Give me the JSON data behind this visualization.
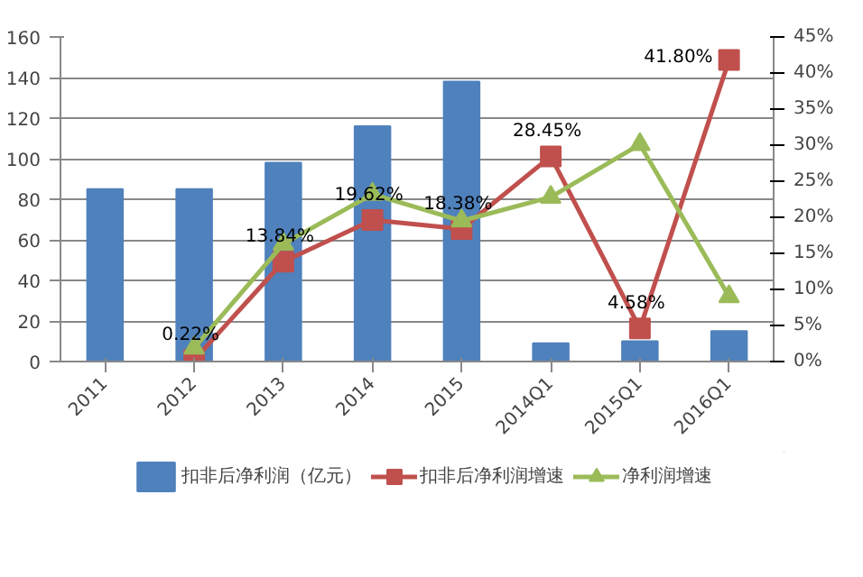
{
  "chart_data": {
    "type": "bar",
    "categories": [
      "2011",
      "2012",
      "2013",
      "2014",
      "2015",
      "2014Q1",
      "2015Q1",
      "2016Q1"
    ],
    "series": [
      {
        "name": "扣非后净利润（亿元）",
        "color": "#4f81bd",
        "values": [
          85,
          85,
          98,
          116,
          138,
          9,
          10,
          15
        ]
      },
      {
        "name": "扣非后净利润增速",
        "type": "line",
        "axis": "y2",
        "color": "#c0504d",
        "marker": "square",
        "values": [
          null,
          0.22,
          13.84,
          19.62,
          18.38,
          28.45,
          4.58,
          41.8
        ],
        "value_labels": [
          null,
          "0.22%",
          "13.84%",
          "19.62%",
          "18.38%",
          "28.45%",
          "4.58%",
          "41.80%"
        ]
      },
      {
        "name": "净利润增速",
        "type": "line",
        "axis": "y2",
        "color": "#9bbb59",
        "marker": "triangle",
        "values": [
          null,
          1.9,
          16.3,
          23.2,
          19.5,
          22.8,
          30.1,
          9.0
        ]
      }
    ],
    "ylim": [
      0,
      160
    ],
    "yticks": [
      0,
      20,
      40,
      60,
      80,
      100,
      120,
      140,
      160
    ],
    "y2lim": [
      0,
      45
    ],
    "y2ticks": [
      {
        "value": 0,
        "label": "0%"
      },
      {
        "value": 5,
        "label": "5%"
      },
      {
        "value": 10,
        "label": "10%"
      },
      {
        "value": 15,
        "label": "15%"
      },
      {
        "value": 20,
        "label": "20%"
      },
      {
        "value": 25,
        "label": "25%"
      },
      {
        "value": 30,
        "label": "30%"
      },
      {
        "value": 35,
        "label": "35%"
      },
      {
        "value": 40,
        "label": "40%"
      },
      {
        "value": 45,
        "label": "45%"
      }
    ],
    "grid": "y",
    "legend": "bottom"
  }
}
